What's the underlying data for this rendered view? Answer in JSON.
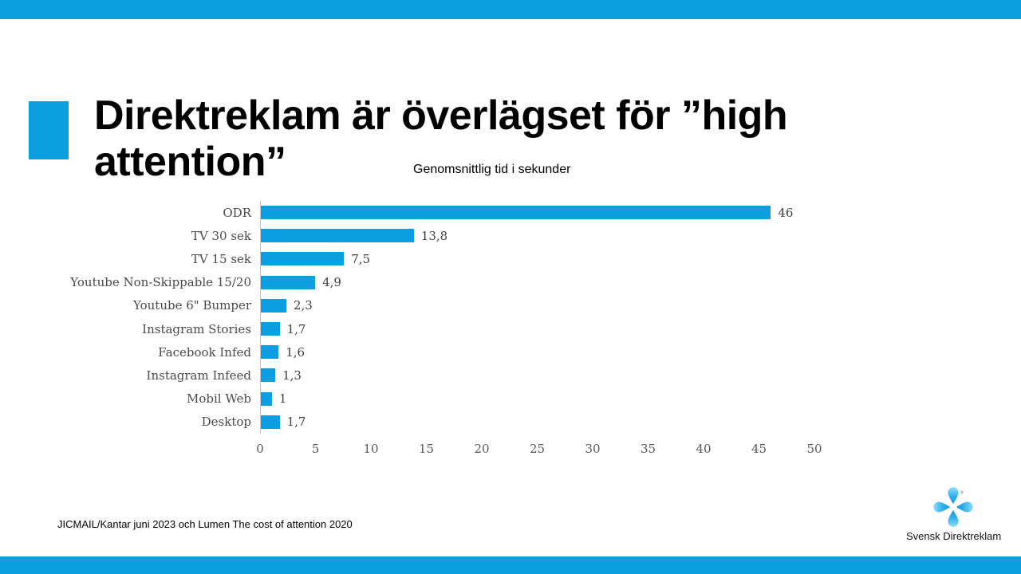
{
  "slide": {
    "title": "Direktreklam är överlägset för ”high attention”",
    "source": "JICMAIL/Kantar juni 2023 och Lumen The cost of attention 2020",
    "accent_color": "#0D9EE2",
    "logo": {
      "text": "Svensk Direktreklam",
      "registered_mark": "®"
    }
  },
  "chart_data": {
    "type": "bar",
    "orientation": "horizontal",
    "title": "Genomsnittlig tid i sekunder",
    "categories": [
      "ODR",
      "TV 30 sek",
      "TV 15 sek",
      "Youtube Non-Skippable 15/20",
      "Youtube 6\" Bumper",
      "Instagram Stories",
      "Facebook Infed",
      "Instagram Infeed",
      "Mobil Web",
      "Desktop"
    ],
    "values": [
      46,
      13.8,
      7.5,
      4.9,
      2.3,
      1.7,
      1.6,
      1.3,
      1,
      1.7
    ],
    "value_labels": [
      "46",
      "13,8",
      "7,5",
      "4,9",
      "2,3",
      "1,7",
      "1,6",
      "1,3",
      "1",
      "1,7"
    ],
    "xlabel": "",
    "ylabel": "",
    "xlim": [
      0,
      50
    ],
    "x_ticks": [
      0,
      5,
      10,
      15,
      20,
      25,
      30,
      35,
      40,
      45,
      50
    ],
    "bar_color": "#0D9EE2",
    "axis_line_color": "#C3C3C3",
    "grid": false,
    "legend": false
  }
}
